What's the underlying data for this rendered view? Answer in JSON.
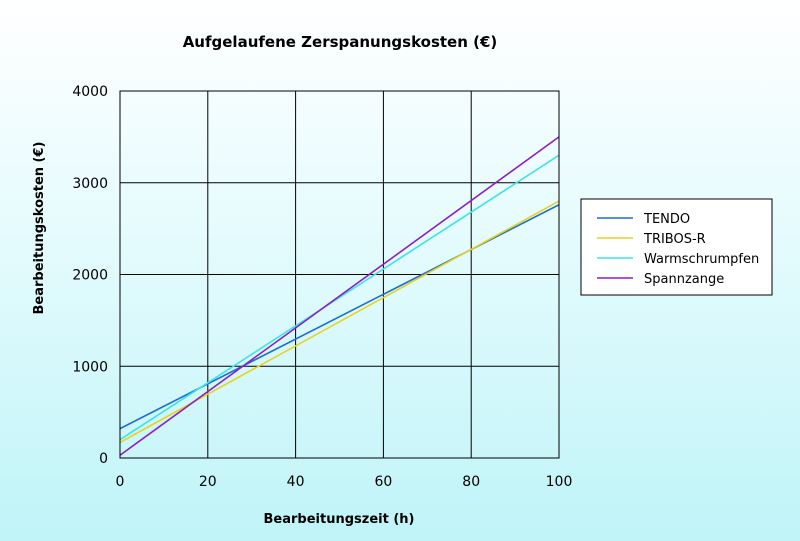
{
  "chart_data": {
    "type": "line",
    "title": "Aufgelaufene Zerspanungskosten (€)",
    "xlabel": "Bearbeitungszeit (h)",
    "ylabel": "Bearbeitungskosten (€)",
    "xlim": [
      0,
      100
    ],
    "ylim": [
      0,
      4000
    ],
    "xticks": [
      0,
      20,
      40,
      60,
      80,
      100
    ],
    "yticks": [
      0,
      1000,
      2000,
      3000,
      4000
    ],
    "grid": true,
    "legend_position": "right",
    "series": [
      {
        "name": "TENDO",
        "color": "#1f6fd1",
        "x": [
          0,
          100
        ],
        "y": [
          320,
          2760
        ]
      },
      {
        "name": "TRIBOS-R",
        "color": "#e8d21c",
        "x": [
          0,
          100
        ],
        "y": [
          170,
          2800
        ]
      },
      {
        "name": "Warmschrumpfen",
        "color": "#3fe3e3",
        "x": [
          0,
          100
        ],
        "y": [
          200,
          3300
        ]
      },
      {
        "name": "Spannzange",
        "color": "#8a1fc9",
        "x": [
          0,
          100
        ],
        "y": [
          30,
          3500
        ]
      }
    ]
  }
}
